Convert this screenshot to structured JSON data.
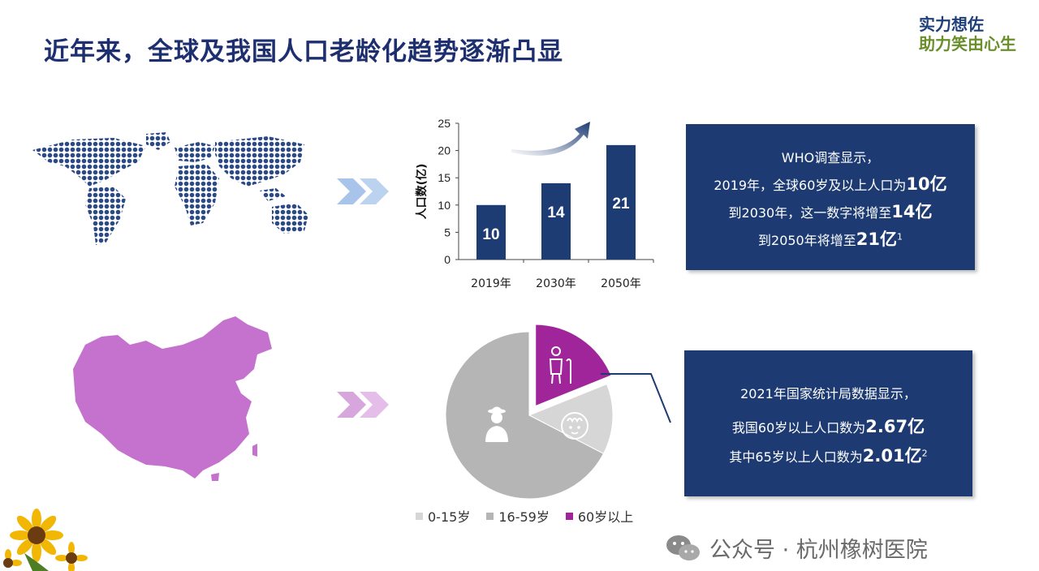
{
  "header": {
    "title": "近年来，全球及我国人口老龄化趋势逐渐凸显"
  },
  "logo": {
    "line1": "实力想佐",
    "line2": "助力笑由心生"
  },
  "colors": {
    "navy": "#1d3b72",
    "bar": "#1e3c74",
    "purple": "#a0259a",
    "china": "#c572cf",
    "world_dot": "#2c4a86",
    "gray_light": "#d6d6d6",
    "gray_mid": "#b5b5b5"
  },
  "chart_data": [
    {
      "type": "bar",
      "categories": [
        "2019年",
        "2030年",
        "2050年"
      ],
      "values": [
        10,
        14,
        21
      ],
      "value_labels": [
        "10",
        "14",
        "21"
      ],
      "ylabel": "人口数(亿)",
      "ylim": [
        0,
        25
      ],
      "yticks": [
        "0",
        "5",
        "10",
        "15",
        "20",
        "25"
      ],
      "grid": false
    },
    {
      "type": "pie",
      "series": [
        {
          "name": "0-15岁",
          "value": 0.137
        },
        {
          "name": "16-59岁",
          "value": 0.674
        },
        {
          "name": "60岁以上",
          "value": 0.189
        }
      ],
      "legend": [
        "0-15岁",
        "16-59岁",
        "60岁以上"
      ],
      "legend_position": "bottom"
    }
  ],
  "who_box": {
    "line1": "WHO调查显示，",
    "line2_pre": "2019年，全球60岁及以上人口为",
    "line2_val": "10亿",
    "line3_pre": "到2030年，这一数字将增至",
    "line3_val": "14亿",
    "line4_pre": "到2050年将增至",
    "line4_val": "21亿",
    "line4_sup": "1"
  },
  "stats_box": {
    "line1": "2021年国家统计局数据显示，",
    "line2_pre": "我国60岁以上人口数为",
    "line2_val": "2.67亿",
    "line3_pre": "其中65岁以上人口数为",
    "line3_val": "2.01亿",
    "line3_sup": "2"
  },
  "footer": {
    "text": "公众号 · 杭州橡树医院"
  }
}
